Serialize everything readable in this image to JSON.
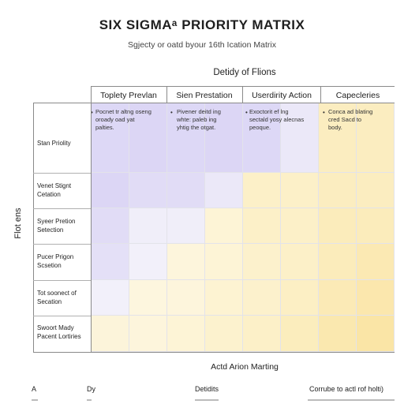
{
  "title": "SIX SIGMAᵃ PRIORITY MATRIX",
  "subtitle": "Sgjecty or oatd byour 16th Ication Matrix",
  "top_axis_label": "Detidy of Flions",
  "side_axis_label": "Flot ens",
  "bottom_label": "Actd Arion Marting",
  "columns": [
    {
      "label": "Toplety Prevlan",
      "note": "Pocnet tr altng oseng\noroady oad yat\npalties."
    },
    {
      "label": "Sien Prestation",
      "note": "Pivener deitd ing\nwhte: paleb ing\nyhtig the otgat."
    },
    {
      "label": "Userdirity Action",
      "note": "Exoctorit ef lng\nsectald yosy alecnas\npeoque."
    },
    {
      "label": "Capecleries",
      "note": "Conca ad blating\ncred Sacd to\nbody."
    }
  ],
  "rows": [
    {
      "label": "Stan Priolity"
    },
    {
      "label": "Venet Stignt\nCetation"
    },
    {
      "label": "Syeer Pretion\nSetection"
    },
    {
      "label": "Pucer Prigon\nScsetion"
    },
    {
      "label": "Tot soonect of\nSecation"
    },
    {
      "label": "Swoort Mady\nPacent Lortiries"
    }
  ],
  "cell_colors": [
    [
      "#ddd8f6",
      "#dcd6f5",
      "#ddd8f6",
      "#dcd6f5",
      "#ddd8f6",
      "#ebe8f8",
      "#fbedc0",
      "#fbedc0"
    ],
    [
      "#dcd6f5",
      "#e1dcf6",
      "#e1dcf6",
      "#ebe8f8",
      "#fcf0c8",
      "#fcf0c8",
      "#fbedc0",
      "#fbedc0"
    ],
    [
      "#e1dcf6",
      "#f0eef9",
      "#f0eef9",
      "#fdf4d6",
      "#fcf0c8",
      "#fcf0c8",
      "#fbecbb",
      "#fbecbb"
    ],
    [
      "#e4e0f7",
      "#f2f0fa",
      "#fdf5dc",
      "#fdf4d6",
      "#fcf1cc",
      "#fcf0c8",
      "#fbecbb",
      "#fbe9b3"
    ],
    [
      "#f2f0fa",
      "#fdf6de",
      "#fdf5dc",
      "#fdf3d2",
      "#fcf1cc",
      "#fcefc4",
      "#fbeab6",
      "#fbe7ad"
    ],
    [
      "#fcf4da",
      "#fdf5dc",
      "#fdf4d6",
      "#fcf2ce",
      "#fcf0c8",
      "#fbedbd",
      "#fae8af",
      "#fae5a6"
    ]
  ],
  "footer": [
    "A",
    "Dy",
    "Detidits",
    "Corrube to actl rof holti)"
  ]
}
